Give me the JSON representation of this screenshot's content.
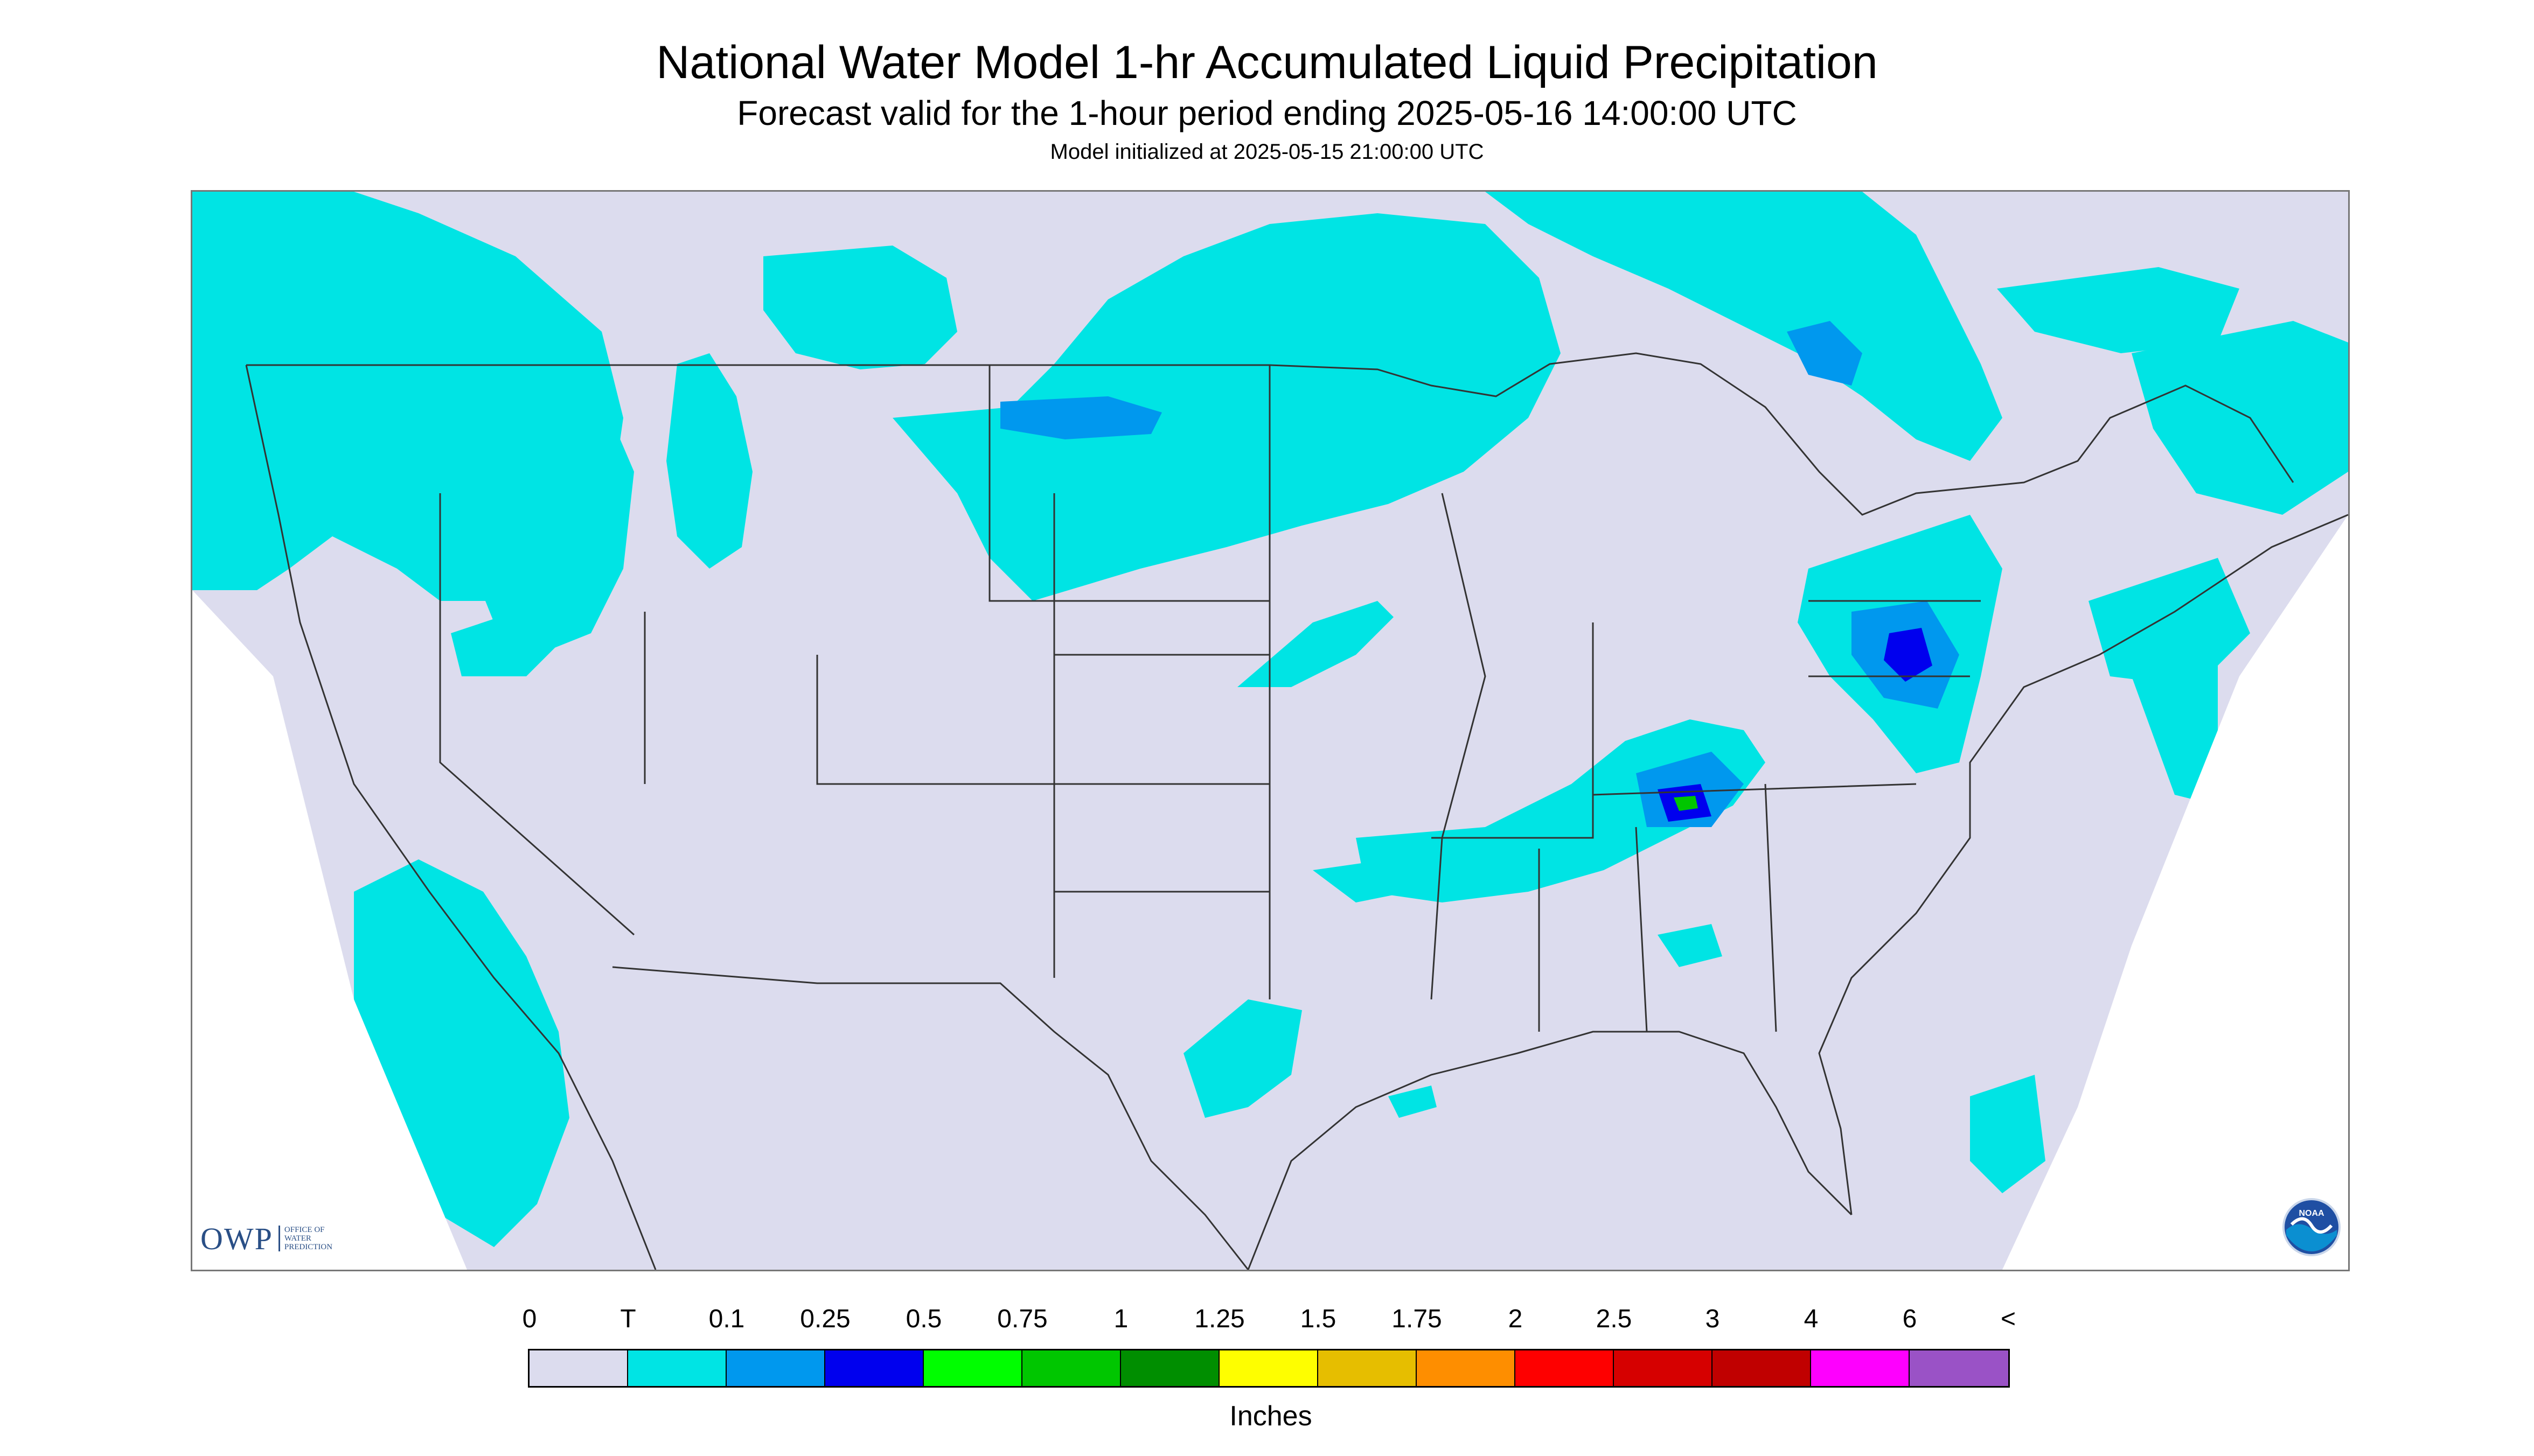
{
  "header": {
    "title": "National Water Model 1-hr Accumulated Liquid Precipitation",
    "subtitle": "Forecast valid for the 1-hour period ending 2025-05-16 14:00:00 UTC",
    "init_line": "Model initialized at 2025-05-15 21:00:00 UTC"
  },
  "map": {
    "background_color": "#dcdcee",
    "boundary_color": "#333333",
    "precip_regions": [
      {
        "region": "Pacific Northwest",
        "category": "T"
      },
      {
        "region": "Northern Rockies / Montana",
        "category": "T"
      },
      {
        "region": "Northern Plains (Dakotas / Minnesota)",
        "category": "T",
        "embedded": "0.1"
      },
      {
        "region": "Ontario / Quebec",
        "category": "T",
        "embedded": "0.25"
      },
      {
        "region": "Mid-Atlantic / Pennsylvania / Maryland",
        "category": "0.1",
        "embedded": "0.25"
      },
      {
        "region": "Tennessee / Kentucky / Southern Appalachians",
        "category": "0.1",
        "embedded": "0.75"
      },
      {
        "region": "Southern California / Baja",
        "category": "T"
      },
      {
        "region": "Texas Gulf Coast",
        "category": "T"
      },
      {
        "region": "New England / Atlantic offshore",
        "category": "T"
      }
    ]
  },
  "logos": {
    "owp_text": "OWP",
    "owp_sub": "OFFICE OF\nWATER\nPREDICTION",
    "noaa_text": "NOAA"
  },
  "legend": {
    "labels": [
      "0",
      "T",
      "0.1",
      "0.25",
      "0.5",
      "0.75",
      "1",
      "1.25",
      "1.5",
      "1.75",
      "2",
      "2.5",
      "3",
      "4",
      "6",
      "<"
    ],
    "colors": [
      "#dcdcee",
      "#00e4e4",
      "#0098ee",
      "#0000ee",
      "#00fe00",
      "#00c600",
      "#008e00",
      "#fefe00",
      "#e6be00",
      "#fe8e00",
      "#fe0000",
      "#d60000",
      "#c00000",
      "#fe00fe",
      "#9a52c6"
    ],
    "unit": "Inches"
  }
}
